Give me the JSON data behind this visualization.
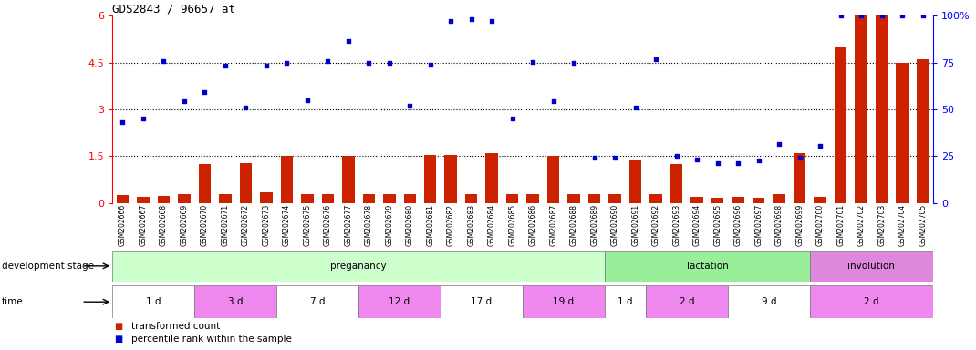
{
  "title": "GDS2843 / 96657_at",
  "samples": [
    "GSM202666",
    "GSM202667",
    "GSM202668",
    "GSM202669",
    "GSM202670",
    "GSM202671",
    "GSM202672",
    "GSM202673",
    "GSM202674",
    "GSM202675",
    "GSM202676",
    "GSM202677",
    "GSM202678",
    "GSM202679",
    "GSM202680",
    "GSM202681",
    "GSM202682",
    "GSM202683",
    "GSM202684",
    "GSM202685",
    "GSM202686",
    "GSM202687",
    "GSM202688",
    "GSM202689",
    "GSM202690",
    "GSM202691",
    "GSM202692",
    "GSM202693",
    "GSM202694",
    "GSM202695",
    "GSM202696",
    "GSM202697",
    "GSM202698",
    "GSM202699",
    "GSM202700",
    "GSM202701",
    "GSM202702",
    "GSM202703",
    "GSM202704",
    "GSM202705"
  ],
  "bar_values": [
    0.25,
    0.2,
    0.22,
    0.28,
    1.25,
    0.28,
    1.28,
    0.33,
    1.5,
    0.28,
    0.28,
    1.5,
    0.28,
    0.28,
    0.28,
    1.55,
    1.55,
    0.28,
    1.6,
    0.28,
    0.28,
    1.5,
    0.28,
    0.28,
    0.28,
    1.35,
    0.28,
    1.25,
    0.2,
    0.18,
    0.2,
    0.18,
    0.28,
    1.6,
    0.2,
    5.0,
    6.0,
    6.0,
    4.5,
    4.6
  ],
  "dot_values": [
    2.6,
    2.7,
    4.55,
    3.25,
    3.55,
    4.4,
    3.05,
    4.4,
    4.5,
    3.3,
    4.55,
    5.2,
    4.48,
    4.5,
    3.12,
    4.42,
    5.82,
    5.9,
    5.82,
    2.72,
    4.52,
    3.25,
    4.5,
    1.45,
    1.45,
    3.05,
    4.62,
    1.5,
    1.38,
    1.28,
    1.28,
    1.35,
    1.9,
    1.45,
    1.82,
    6.0,
    6.0,
    6.0,
    6.0,
    6.0
  ],
  "bar_color": "#cc2200",
  "dot_color": "#0000cc",
  "ylim_left": [
    0,
    6
  ],
  "yticks_left": [
    0,
    1.5,
    3.0,
    4.5,
    6.0
  ],
  "ytick_labels_left": [
    "0",
    "1.5",
    "3",
    "4.5",
    "6"
  ],
  "ylim_right": [
    0,
    100
  ],
  "yticks_right": [
    0,
    25,
    50,
    75,
    100
  ],
  "ytick_labels_right": [
    "0",
    "25",
    "50",
    "75",
    "100%"
  ],
  "development_stages": [
    {
      "label": "preganancy",
      "start": 0,
      "end": 24,
      "color": "#ccffcc"
    },
    {
      "label": "lactation",
      "start": 24,
      "end": 34,
      "color": "#99ee99"
    },
    {
      "label": "involution",
      "start": 34,
      "end": 40,
      "color": "#dd88dd"
    }
  ],
  "time_periods": [
    {
      "label": "1 d",
      "start": 0,
      "end": 4,
      "color": "#ffffff"
    },
    {
      "label": "3 d",
      "start": 4,
      "end": 8,
      "color": "#ee88ee"
    },
    {
      "label": "7 d",
      "start": 8,
      "end": 12,
      "color": "#ffffff"
    },
    {
      "label": "12 d",
      "start": 12,
      "end": 16,
      "color": "#ee88ee"
    },
    {
      "label": "17 d",
      "start": 16,
      "end": 20,
      "color": "#ffffff"
    },
    {
      "label": "19 d",
      "start": 20,
      "end": 24,
      "color": "#ee88ee"
    },
    {
      "label": "1 d",
      "start": 24,
      "end": 26,
      "color": "#ffffff"
    },
    {
      "label": "2 d",
      "start": 26,
      "end": 30,
      "color": "#ee88ee"
    },
    {
      "label": "9 d",
      "start": 30,
      "end": 34,
      "color": "#ffffff"
    },
    {
      "label": "2 d",
      "start": 34,
      "end": 40,
      "color": "#ee88ee"
    }
  ],
  "legend_bar_label": "transformed count",
  "legend_dot_label": "percentile rank within the sample",
  "dev_stage_label": "development stage",
  "time_label": "time",
  "dotted_lines": [
    1.5,
    3.0,
    4.5
  ],
  "bar_width": 0.6,
  "n_samples": 40
}
